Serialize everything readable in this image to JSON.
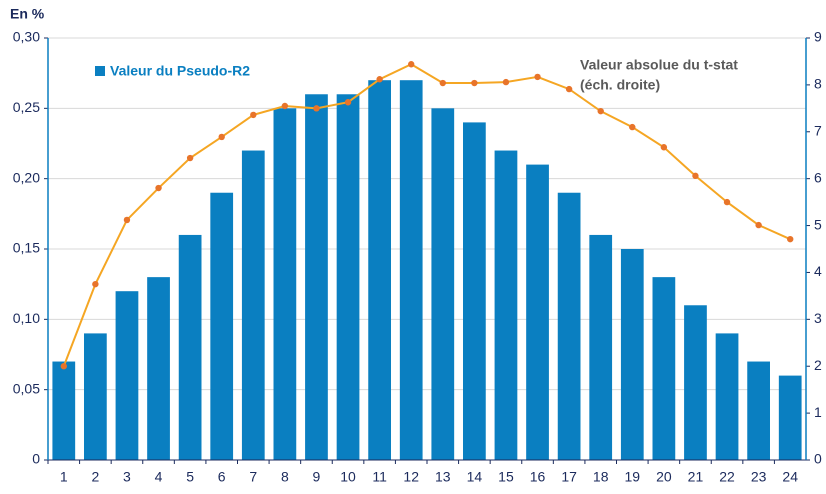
{
  "chart_data": {
    "type": "bar-line",
    "y_axis_label": "En %",
    "categories": [
      "1",
      "2",
      "3",
      "4",
      "5",
      "6",
      "7",
      "8",
      "9",
      "10",
      "11",
      "12",
      "13",
      "14",
      "15",
      "16",
      "17",
      "18",
      "19",
      "20",
      "21",
      "22",
      "23",
      "24"
    ],
    "series": [
      {
        "name": "Valeur du Pseudo-R2",
        "type": "bar",
        "color": "#0a7fc1",
        "axis": "y",
        "values": [
          0.07,
          0.09,
          0.12,
          0.13,
          0.16,
          0.19,
          0.22,
          0.25,
          0.26,
          0.26,
          0.27,
          0.27,
          0.25,
          0.24,
          0.22,
          0.21,
          0.19,
          0.16,
          0.15,
          0.13,
          0.11,
          0.09,
          0.07,
          0.06
        ]
      },
      {
        "name": "Valeur absolue du t-stat",
        "type": "line",
        "color": "#f5a623",
        "marker_color": "#e8742a",
        "axis": "y2",
        "values": [
          2.0,
          3.75,
          5.12,
          5.8,
          6.44,
          6.89,
          7.36,
          7.55,
          7.5,
          7.63,
          8.12,
          8.44,
          8.04,
          8.04,
          8.06,
          8.17,
          7.91,
          7.44,
          7.1,
          6.67,
          6.06,
          5.5,
          5.01,
          4.71
        ]
      }
    ],
    "y2_note": "(éch. droite)",
    "ylim": [
      0,
      0.3
    ],
    "yticks": [
      0,
      {
        "value": 0.05,
        "label": "0,05"
      },
      {
        "value": 0.1,
        "label": "0,10"
      },
      {
        "value": 0.15,
        "label": "0,15"
      },
      {
        "value": 0.2,
        "label": "0,20"
      },
      {
        "value": 0.25,
        "label": "0,25"
      },
      {
        "value": 0.3,
        "label": "0,30"
      }
    ],
    "y2lim": [
      0,
      9
    ],
    "y2ticks": [
      0,
      1,
      2,
      3,
      4,
      5,
      6,
      7,
      8,
      9
    ],
    "grid": true
  }
}
